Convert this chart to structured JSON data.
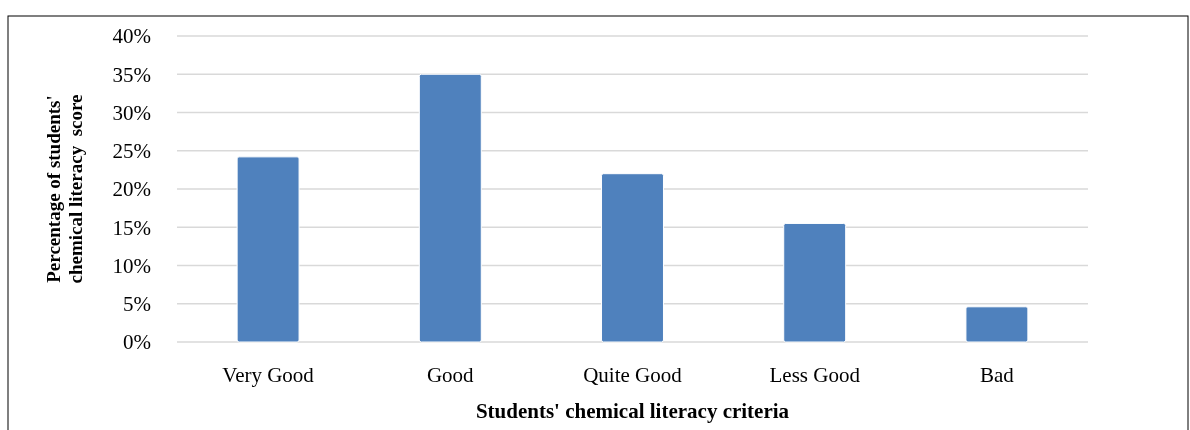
{
  "chart_data": {
    "type": "bar",
    "categories": [
      "Very Good",
      "Good",
      "Quite Good",
      "Less Good",
      "Bad"
    ],
    "values": [
      24.2,
      35,
      22,
      15.5,
      4.6
    ],
    "color": "#4f81bd",
    "xlabel": "Students' chemical literacy criteria",
    "ylabel": "Percentage of students'\nchemical literacy  score",
    "ylim": [
      0,
      40
    ],
    "yticks": [
      {
        "value": 0,
        "label": "0%"
      },
      {
        "value": 5,
        "label": "5%"
      },
      {
        "value": 10,
        "label": "10%"
      },
      {
        "value": 15,
        "label": "15%"
      },
      {
        "value": 20,
        "label": "20%"
      },
      {
        "value": 25,
        "label": "25%"
      },
      {
        "value": 30,
        "label": "30%"
      },
      {
        "value": 35,
        "label": "35%"
      },
      {
        "value": 40,
        "label": "40%"
      }
    ],
    "grid": "y"
  }
}
